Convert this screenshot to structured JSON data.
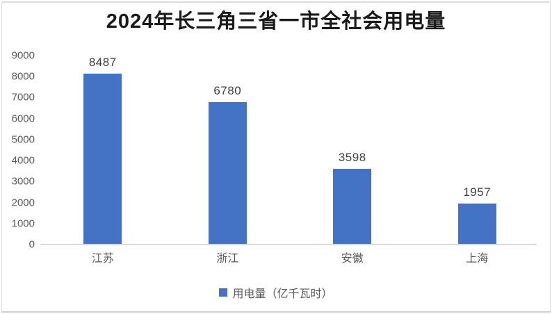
{
  "chart_data": {
    "type": "bar",
    "title": "2024年长三角三省一市全社会用电量",
    "categories": [
      "江苏",
      "浙江",
      "安徽",
      "上海"
    ],
    "values": [
      8487,
      6780,
      3598,
      1957
    ],
    "series": [
      {
        "name": "用电量（亿千瓦时）",
        "values": [
          8487,
          6780,
          3598,
          1957
        ]
      }
    ],
    "xlabel": "",
    "ylabel": "",
    "ylim": [
      0,
      9000
    ],
    "yticks": [
      9000,
      8000,
      7000,
      6000,
      5000,
      4000,
      3000,
      2000,
      1000,
      0
    ],
    "grid": false,
    "legend_position": "bottom"
  },
  "legend": {
    "label": "用电量（亿千瓦时）"
  },
  "colors": {
    "bar": "#4472C4",
    "axis_line": "#d9d9d9",
    "tick_text": "#595959",
    "value_label": "#404040",
    "title_text": "#1a1a1a"
  }
}
